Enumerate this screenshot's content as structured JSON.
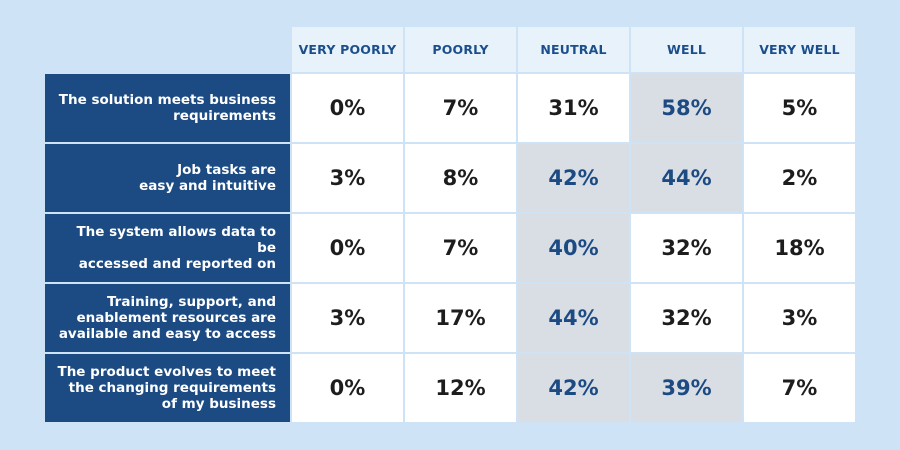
{
  "chart_data": {
    "type": "table",
    "columns": [
      "VERY POORLY",
      "POORLY",
      "NEUTRAL",
      "WELL",
      "VERY WELL"
    ],
    "rows": [
      {
        "label": "The solution meets business\nrequirements",
        "values": [
          "0%",
          "7%",
          "31%",
          "58%",
          "5%"
        ],
        "highlight": [
          false,
          false,
          false,
          true,
          false
        ]
      },
      {
        "label": "Job tasks are\neasy and intuitive",
        "values": [
          "3%",
          "8%",
          "42%",
          "44%",
          "2%"
        ],
        "highlight": [
          false,
          false,
          true,
          true,
          false
        ]
      },
      {
        "label": "The system allows data to be\naccessed and reported on",
        "values": [
          "0%",
          "7%",
          "40%",
          "32%",
          "18%"
        ],
        "highlight": [
          false,
          false,
          true,
          false,
          false
        ]
      },
      {
        "label": "Training, support, and\nenablement resources are\navailable and easy to access",
        "values": [
          "3%",
          "17%",
          "44%",
          "32%",
          "3%"
        ],
        "highlight": [
          false,
          false,
          true,
          false,
          false
        ]
      },
      {
        "label": "The product evolves to meet\nthe changing requirements\nof my business",
        "values": [
          "0%",
          "12%",
          "42%",
          "39%",
          "7%"
        ],
        "highlight": [
          false,
          false,
          true,
          true,
          false
        ]
      }
    ]
  },
  "colors": {
    "label_bg": "#1c4a82",
    "highlight_bg": "#d9dee5",
    "highlight_text": "#1c4a82",
    "header_text": "#1b4f8c"
  }
}
